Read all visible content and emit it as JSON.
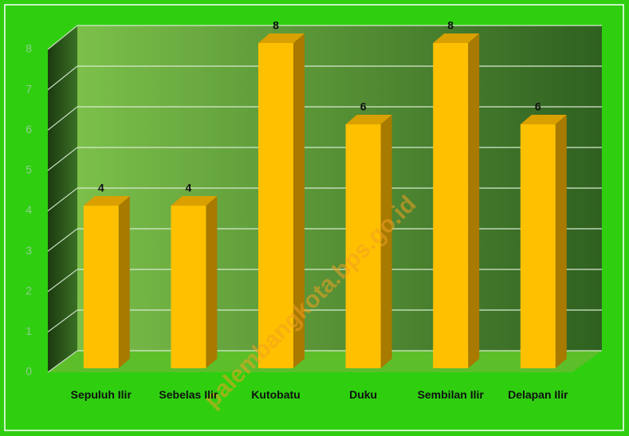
{
  "chart_data": {
    "type": "bar",
    "categories": [
      "Sepuluh Ilir",
      "Sebelas Ilir",
      "Kutobatu",
      "Duku",
      "Sembilan Ilir",
      "Delapan Ilir"
    ],
    "values": [
      4,
      4,
      8,
      6,
      8,
      6
    ],
    "color": "#ffc000",
    "ylim": [
      0,
      8
    ],
    "yticks": [
      0,
      1,
      2,
      3,
      4,
      5,
      6,
      7,
      8
    ],
    "grid": true,
    "watermark": "palembangkota.bps.go.id"
  }
}
